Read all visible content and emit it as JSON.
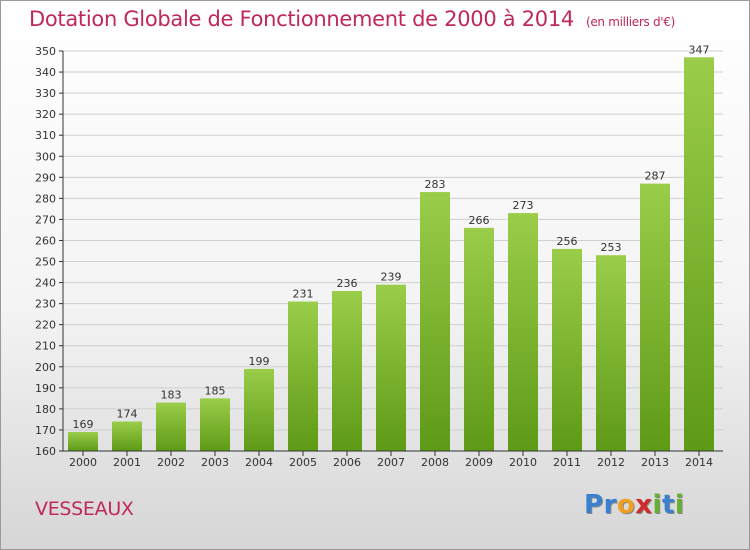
{
  "title": "Dotation Globale de Fonctionnement de 2000 à 2014",
  "unit_note": "(en milliers d'€)",
  "commune": "VESSEAUX",
  "logo": {
    "text": "Proxiti",
    "letters": [
      {
        "ch": "P",
        "color": "#3a7fd0"
      },
      {
        "ch": "r",
        "color": "#3a7fd0"
      },
      {
        "ch": "o",
        "color": "#f0a020"
      },
      {
        "ch": "x",
        "color": "#d02a2a"
      },
      {
        "ch": "i",
        "color": "#66b030"
      },
      {
        "ch": "t",
        "color": "#3a7fd0"
      },
      {
        "ch": "i",
        "color": "#66b030"
      }
    ]
  },
  "colors": {
    "title": "#c0285a",
    "bar_top": "#9acd4a",
    "bar_bottom": "#5e9a16",
    "grid": "#cfcfcf",
    "axis": "#333333"
  },
  "chart_data": {
    "type": "bar",
    "title": "Dotation Globale de Fonctionnement de 2000 à 2014",
    "ylabel": "en milliers d'€",
    "xlabel": "",
    "categories": [
      "2000",
      "2001",
      "2002",
      "2003",
      "2004",
      "2005",
      "2006",
      "2007",
      "2008",
      "2009",
      "2010",
      "2011",
      "2012",
      "2013",
      "2014"
    ],
    "values": [
      169,
      174,
      183,
      185,
      199,
      231,
      236,
      239,
      283,
      266,
      273,
      256,
      253,
      287,
      347
    ],
    "ylim": [
      160,
      350
    ],
    "yticks": [
      160,
      170,
      180,
      190,
      200,
      210,
      220,
      230,
      240,
      250,
      260,
      270,
      280,
      290,
      300,
      310,
      320,
      330,
      340,
      350
    ],
    "grid": true
  }
}
